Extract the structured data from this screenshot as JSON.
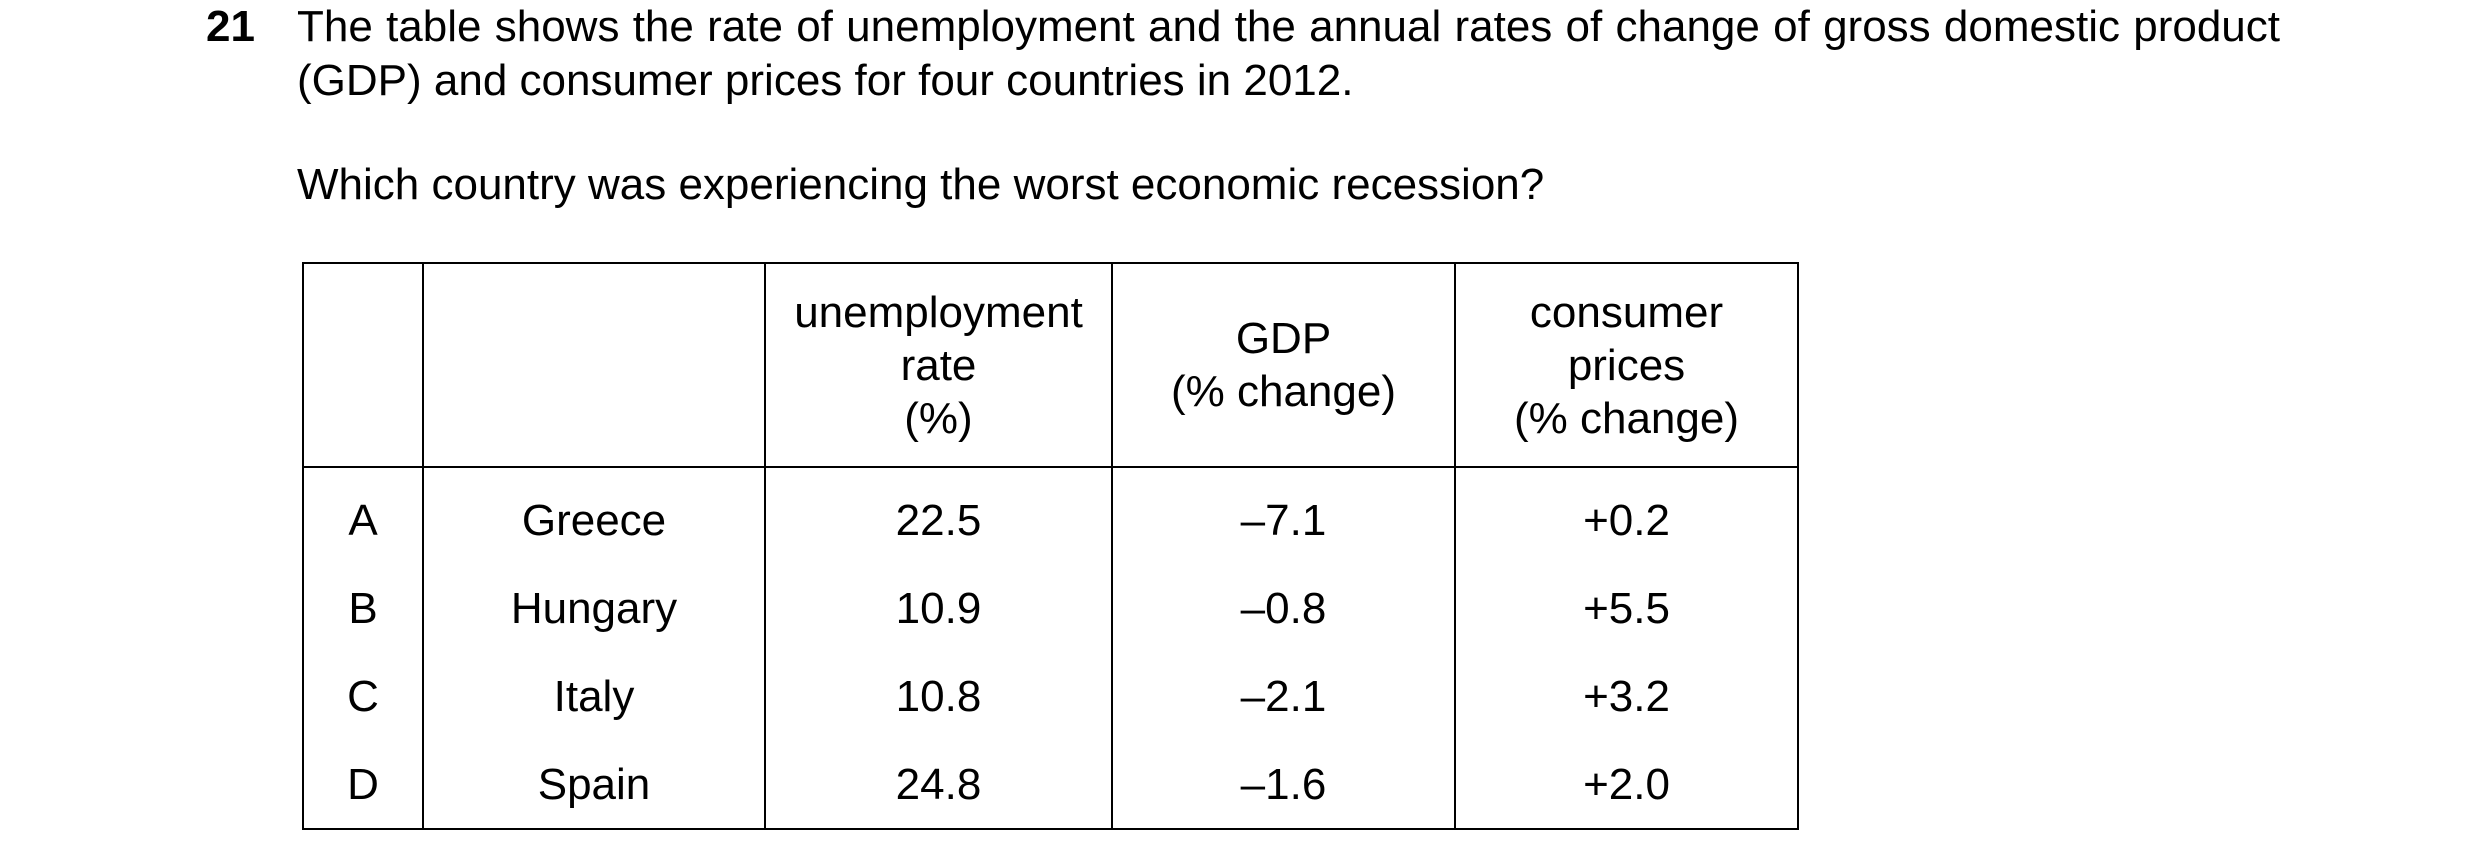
{
  "question": {
    "number": "21",
    "text": "The table shows the rate of unemployment and the annual rates of change of gross domestic product (GDP) and consumer prices for four countries in 2012.",
    "prompt": "Which country was experiencing the worst economic recession?"
  },
  "table": {
    "headers": {
      "key": "",
      "country": "",
      "unemployment": [
        "unemployment",
        "rate",
        "(%)"
      ],
      "gdp": [
        "GDP",
        "(% change)"
      ],
      "consumer_prices": [
        "consumer",
        "prices",
        "(% change)"
      ]
    },
    "rows": [
      {
        "key": "A",
        "country": "Greece",
        "unemployment": "22.5",
        "gdp": "–7.1",
        "consumer_prices": "+0.2"
      },
      {
        "key": "B",
        "country": "Hungary",
        "unemployment": "10.9",
        "gdp": "–0.8",
        "consumer_prices": "+5.5"
      },
      {
        "key": "C",
        "country": "Italy",
        "unemployment": "10.8",
        "gdp": "–2.1",
        "consumer_prices": "+3.2"
      },
      {
        "key": "D",
        "country": "Spain",
        "unemployment": "24.8",
        "gdp": "–1.6",
        "consumer_prices": "+2.0"
      }
    ]
  }
}
